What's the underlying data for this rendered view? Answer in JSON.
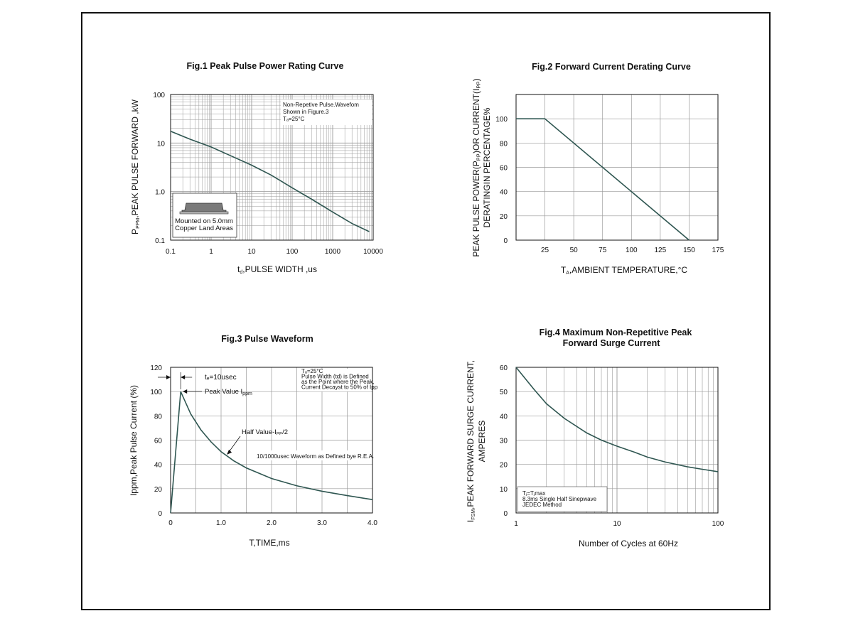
{
  "colors": {
    "curve": "#2f5651",
    "grid": "#999999",
    "axis": "#111111"
  },
  "chart_data": [
    {
      "id": "fig1",
      "type": "line",
      "title": "Fig.1  Peak Pulse Power Rating Curve",
      "xlabel_main": "t",
      "xlabel_sub": "d",
      "xlabel_rest": ",PULSE WIDTH ,us",
      "ylabel_main": "P",
      "ylabel_sub": "PPM",
      "ylabel_rest": ",PEAK PULSE  FORWARD ,kW",
      "x_scale": "log",
      "y_scale": "log",
      "xlim": [
        0.1,
        10000
      ],
      "ylim": [
        0.1,
        100
      ],
      "x_ticks": [
        "0.1",
        "1",
        "10",
        "100",
        "1000",
        "10000"
      ],
      "y_ticks": [
        "0.1",
        "1.0",
        "10",
        "100"
      ],
      "grid": true,
      "series": [
        {
          "x": [
            0.1,
            0.3,
            1,
            3,
            10,
            30,
            100,
            300,
            1000,
            3000,
            8000
          ],
          "y": [
            17.5,
            12,
            8.3,
            5.5,
            3.5,
            2.2,
            1.2,
            0.7,
            0.38,
            0.22,
            0.15
          ]
        }
      ],
      "annotations": {
        "conditions": [
          "Non-Repetive  Pulse.Wavefom",
          "Shown in Figure.3",
          "Tₐ=25°C"
        ],
        "inset_text": [
          "Mounted on 5.0mm",
          "Copper Land Areas"
        ],
        "inset_icon": "package-icon"
      }
    },
    {
      "id": "fig2",
      "type": "line",
      "title": "Fig.2  Forward Current Derating Curve",
      "xlabel_main": "T",
      "xlabel_sub": "A",
      "xlabel_rest": ",AMBIENT TEMPERATURE,°C",
      "ylabel_line1": "PEAK PULSE POWER(Pₚₚ)OR CURRENT(Iₚₚ)",
      "ylabel_line2": "DERATINGIN PERCENTAGE%",
      "xlim": [
        0,
        175
      ],
      "ylim": [
        0,
        120
      ],
      "x_ticks": [
        25,
        50,
        75,
        100,
        125,
        150,
        175
      ],
      "y_ticks": [
        0,
        20,
        40,
        60,
        80,
        100
      ],
      "grid": true,
      "series": [
        {
          "x": [
            0,
            25,
            150
          ],
          "y": [
            100,
            100,
            0
          ]
        }
      ]
    },
    {
      "id": "fig3",
      "type": "line",
      "title": "Fig.3  Pulse Waveform",
      "xlabel": "T,TIME,ms",
      "ylabel": "Ippm,Peak Pulse Current (%)",
      "xlim": [
        0,
        4.0
      ],
      "ylim": [
        0,
        120
      ],
      "x_ticks": [
        "0",
        "1.0",
        "2.0",
        "3.0",
        "4.0"
      ],
      "y_ticks": [
        0,
        20,
        40,
        60,
        80,
        100,
        120
      ],
      "grid": true,
      "series": [
        {
          "x": [
            0,
            0.2,
            0.4,
            0.6,
            0.8,
            1.0,
            1.25,
            1.5,
            2.0,
            2.5,
            3.0,
            3.5,
            4.0
          ],
          "y": [
            0,
            100,
            81.5,
            68.5,
            58.6,
            50.5,
            43,
            37.1,
            28.4,
            22.4,
            17.9,
            14.3,
            11.0
          ]
        }
      ],
      "annotations": {
        "tr": "tₑ=10usec",
        "peak": "Peak  Value   I",
        "peak_sub": "ppm",
        "half": "Half  Value-Iₚₚ/2",
        "waveform": "10/1000usec  Waveform as Defined bye R.E.A.",
        "conditions": [
          "Tₐ=25°C",
          "Pulse   Width (td) is  Defined",
          "as the Point  where the Peak,",
          "Current  Decayst to 50% of Ipp"
        ]
      }
    },
    {
      "id": "fig4",
      "type": "line",
      "title_line1": "Fig.4  Maximum Non-Repetitive Peak",
      "title_line2": "Forward Surge Current",
      "xlabel": "Number of Cycles at 60Hz",
      "ylabel_main": "I",
      "ylabel_sub": "FSM",
      "ylabel_rest": ",PEAK FORWARD SURGE CURRENT,",
      "ylabel_line2": "AMPERES",
      "x_scale": "log",
      "xlim": [
        1,
        100
      ],
      "ylim": [
        0,
        60
      ],
      "x_ticks": [
        "1",
        "10",
        "100"
      ],
      "y_ticks": [
        0,
        10,
        20,
        30,
        40,
        50,
        60
      ],
      "grid": true,
      "series": [
        {
          "x": [
            1,
            1.5,
            2,
            3,
            5,
            7,
            10,
            15,
            20,
            30,
            50,
            70,
            100
          ],
          "y": [
            60,
            51,
            45,
            39,
            33,
            30,
            27.5,
            25,
            23,
            21,
            19,
            18,
            17
          ]
        }
      ],
      "annotations": {
        "conditions": [
          "Tⱼ=Tⱼmax",
          "8.3ms Single Half  Sinepwave",
          "JEDEC Method"
        ]
      }
    }
  ]
}
